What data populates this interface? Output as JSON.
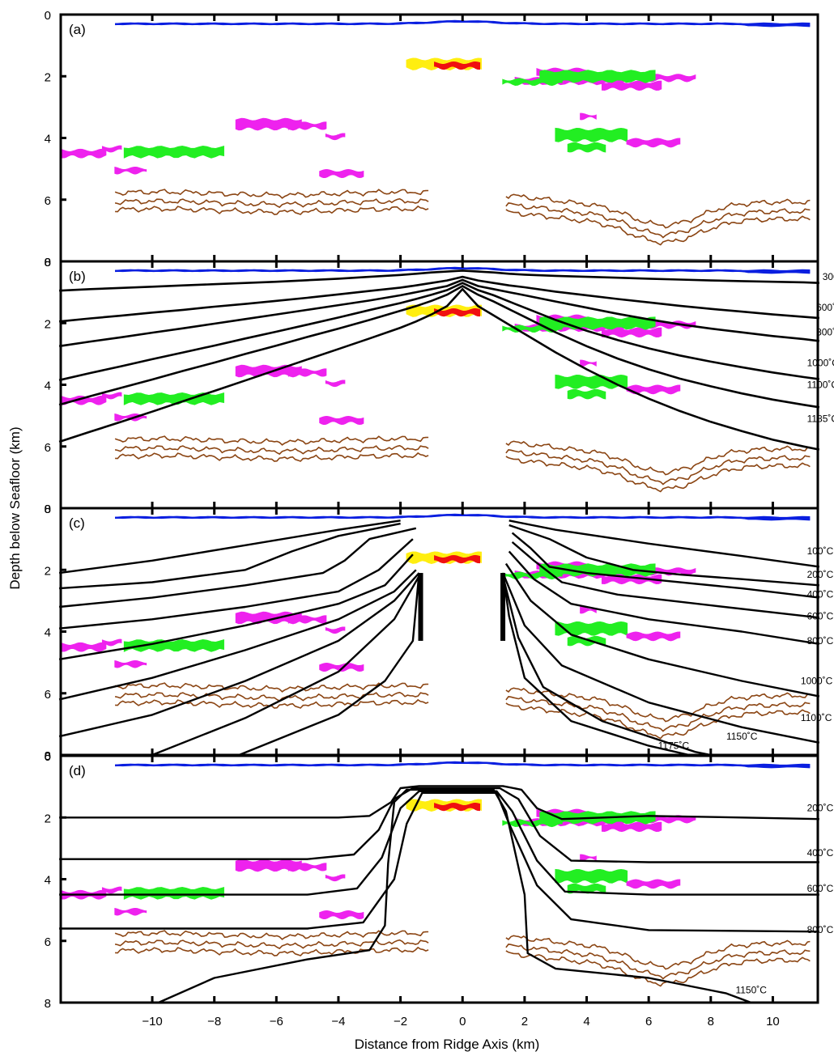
{
  "figure": {
    "xlabel": "Distance from Ridge Axis (km)",
    "ylabel": "Depth below Seafloor (km)",
    "xticks": [
      -10,
      -8,
      -6,
      -4,
      -2,
      0,
      2,
      4,
      6,
      8,
      10
    ],
    "yticks": [
      0,
      2,
      4,
      6,
      8
    ],
    "xlim": [
      -12.95,
      11.45
    ],
    "ylim": [
      0,
      8
    ],
    "colors": {
      "seafloor": "#0a1fe0",
      "reflector_red": "#f01010",
      "reflector_yellow": "#ffee10",
      "reflector_green": "#22ee22",
      "reflector_magenta": "#ee22ee",
      "moho": "#8b4513",
      "isotherm": "#000000"
    }
  },
  "panels": [
    {
      "label": "(a)",
      "isotherm_labels": []
    },
    {
      "label": "(b)",
      "isotherm_labels": [
        {
          "text": "300˚C",
          "x": 11.6,
          "y": 0.6
        },
        {
          "text": "600˚C",
          "x": 11.4,
          "y": 1.6
        },
        {
          "text": "800˚C",
          "x": 11.4,
          "y": 2.4
        },
        {
          "text": "1000˚C",
          "x": 11.1,
          "y": 3.4
        },
        {
          "text": "1100˚C",
          "x": 11.1,
          "y": 4.1
        },
        {
          "text": "1185˚C",
          "x": 11.1,
          "y": 5.2
        }
      ]
    },
    {
      "label": "(c)",
      "isotherm_labels": [
        {
          "text": "100˚C",
          "x": 11.1,
          "y": 1.5
        },
        {
          "text": "200˚C",
          "x": 11.1,
          "y": 2.25
        },
        {
          "text": "400˚C",
          "x": 11.1,
          "y": 2.9
        },
        {
          "text": "600˚C",
          "x": 11.1,
          "y": 3.6
        },
        {
          "text": "800˚C",
          "x": 11.1,
          "y": 4.4
        },
        {
          "text": "1000˚C",
          "x": 10.9,
          "y": 5.7
        },
        {
          "text": "1100˚C",
          "x": 10.9,
          "y": 6.9
        },
        {
          "text": "1150˚C",
          "x": 8.5,
          "y": 7.5
        },
        {
          "text": "1175˚C",
          "x": 6.3,
          "y": 7.8
        }
      ]
    },
    {
      "label": "(d)",
      "isotherm_labels": [
        {
          "text": "200˚C",
          "x": 11.1,
          "y": 1.8
        },
        {
          "text": "400˚C",
          "x": 11.1,
          "y": 3.25
        },
        {
          "text": "600˚C",
          "x": 11.1,
          "y": 4.4
        },
        {
          "text": "800˚C",
          "x": 11.1,
          "y": 5.75
        },
        {
          "text": "1150˚C",
          "x": 8.8,
          "y": 7.7
        }
      ]
    }
  ],
  "chart_data": {
    "type": "line",
    "x": [
      -13,
      -12,
      -11,
      -10,
      -9,
      -8,
      -7,
      -6,
      -5,
      -4,
      -3,
      -2,
      -1.5,
      -1,
      -0.5,
      0,
      0.5,
      1,
      1.5,
      2,
      3,
      4,
      5,
      6,
      7,
      8,
      9,
      10,
      11,
      11.5
    ],
    "series": [
      {
        "name": "300˚C",
        "panel": "(b)",
        "values": [
          0.95,
          0.9,
          0.86,
          0.82,
          0.78,
          0.74,
          0.7,
          0.66,
          0.61,
          0.56,
          0.5,
          0.44,
          0.4,
          0.36,
          0.33,
          0.3,
          0.33,
          0.36,
          0.4,
          0.43,
          0.47,
          0.5,
          0.53,
          0.56,
          0.59,
          0.62,
          0.64,
          0.66,
          0.68,
          0.7
        ]
      },
      {
        "name": "600˚C",
        "panel": "(b)",
        "values": [
          1.95,
          1.85,
          1.76,
          1.66,
          1.57,
          1.47,
          1.38,
          1.28,
          1.18,
          1.07,
          0.96,
          0.85,
          0.78,
          0.7,
          0.62,
          0.5,
          0.62,
          0.7,
          0.78,
          0.84,
          0.98,
          1.1,
          1.22,
          1.33,
          1.44,
          1.54,
          1.63,
          1.72,
          1.8,
          1.84
        ]
      },
      {
        "name": "800˚C",
        "panel": "(b)",
        "values": [
          2.75,
          2.6,
          2.46,
          2.31,
          2.17,
          2.02,
          1.87,
          1.72,
          1.57,
          1.42,
          1.27,
          1.1,
          1.0,
          0.9,
          0.8,
          0.6,
          0.8,
          0.9,
          1.0,
          1.1,
          1.3,
          1.5,
          1.7,
          1.88,
          2.04,
          2.18,
          2.3,
          2.42,
          2.52,
          2.58
        ]
      },
      {
        "name": "1000˚C",
        "panel": "(b)",
        "values": [
          3.85,
          3.62,
          3.4,
          3.17,
          2.95,
          2.73,
          2.5,
          2.28,
          2.05,
          1.82,
          1.58,
          1.35,
          1.22,
          1.08,
          0.93,
          0.7,
          0.93,
          1.1,
          1.3,
          1.5,
          1.9,
          2.25,
          2.55,
          2.82,
          3.05,
          3.25,
          3.43,
          3.6,
          3.75,
          3.82
        ]
      },
      {
        "name": "1100˚C",
        "panel": "(b)",
        "values": [
          4.65,
          4.37,
          4.1,
          3.83,
          3.55,
          3.28,
          3.0,
          2.73,
          2.45,
          2.18,
          1.9,
          1.6,
          1.45,
          1.28,
          1.08,
          0.8,
          1.08,
          1.3,
          1.55,
          1.8,
          2.3,
          2.75,
          3.15,
          3.5,
          3.8,
          4.05,
          4.28,
          4.48,
          4.65,
          4.73
        ]
      },
      {
        "name": "1185˚C",
        "panel": "(b)",
        "values": [
          5.85,
          5.52,
          5.2,
          4.87,
          4.53,
          4.2,
          3.86,
          3.52,
          3.18,
          2.84,
          2.5,
          2.15,
          1.95,
          1.72,
          1.45,
          0.9,
          1.45,
          1.75,
          2.05,
          2.35,
          2.95,
          3.5,
          4.0,
          4.45,
          4.85,
          5.2,
          5.5,
          5.78,
          6.0,
          6.1
        ]
      }
    ],
    "xlabel": "Distance from Ridge Axis (km)",
    "ylabel": "Depth below Seafloor (km)",
    "xlim": [
      -12.95,
      11.45
    ],
    "ylim": [
      8,
      0
    ],
    "grid": false,
    "legend": "none"
  }
}
